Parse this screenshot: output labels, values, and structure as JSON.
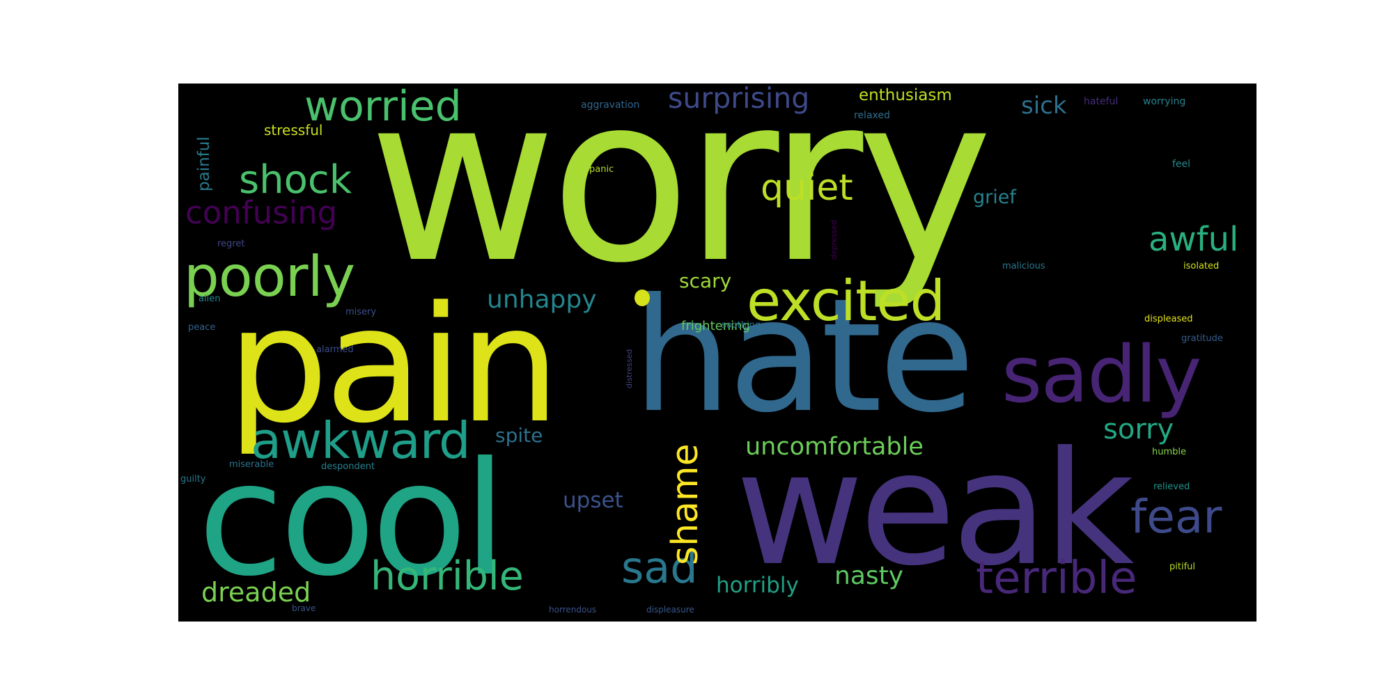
{
  "wordcloud": {
    "background": "#000000",
    "words": [
      {
        "text": "worry",
        "color": "#a8db34"
      },
      {
        "text": "pain",
        "color": "#dde318"
      },
      {
        "text": "hate",
        "color": "#31688e"
      },
      {
        "text": "weak",
        "color": "#46337e"
      },
      {
        "text": "cool",
        "color": "#20a486"
      },
      {
        "text": "sadly",
        "color": "#482475"
      },
      {
        "text": "excited",
        "color": "#bddf26"
      },
      {
        "text": "poorly",
        "color": "#7ad151"
      },
      {
        "text": "awkward",
        "color": "#1f9e89"
      },
      {
        "text": "worried",
        "color": "#4ac16d"
      },
      {
        "text": "shock",
        "color": "#4ac16d"
      },
      {
        "text": "confusing",
        "color": "#440154"
      },
      {
        "text": "surprising",
        "color": "#3e4989"
      },
      {
        "text": "quiet",
        "color": "#bddf26"
      },
      {
        "text": "fear",
        "color": "#3e4a89"
      },
      {
        "text": "terrible",
        "color": "#482878"
      },
      {
        "text": "horrible",
        "color": "#35b779"
      },
      {
        "text": "sad",
        "color": "#2a788e"
      },
      {
        "text": "shame",
        "color": "#fde725"
      },
      {
        "text": "uncomfortable",
        "color": "#6ccd5a"
      },
      {
        "text": "awful",
        "color": "#2ab07f"
      },
      {
        "text": "sorry",
        "color": "#22a884"
      },
      {
        "text": "unhappy",
        "color": "#25858e"
      },
      {
        "text": "dreaded",
        "color": "#7ad151"
      },
      {
        "text": "nasty",
        "color": "#5ec962"
      },
      {
        "text": "horribly",
        "color": "#1fa187"
      },
      {
        "text": "upset",
        "color": "#3b528b"
      },
      {
        "text": "spite",
        "color": "#2c728e"
      },
      {
        "text": "scary",
        "color": "#a0da39"
      },
      {
        "text": "sick",
        "color": "#2d708e"
      },
      {
        "text": "grief",
        "color": "#26828e"
      },
      {
        "text": "enthusiasm",
        "color": "#c2df23"
      },
      {
        "text": "stressful",
        "color": "#c8e020"
      },
      {
        "text": "painful",
        "color": "#287c8e"
      },
      {
        "text": "frightening",
        "color": "#65cb5e"
      },
      {
        "text": "aggravation",
        "color": "#31668e"
      },
      {
        "text": "relaxed",
        "color": "#2e6f8e"
      },
      {
        "text": "worrying",
        "color": "#27808e"
      },
      {
        "text": "hateful",
        "color": "#472d7b"
      },
      {
        "text": "panic",
        "color": "#b5de2b"
      },
      {
        "text": "feel",
        "color": "#23898e"
      },
      {
        "text": "regret",
        "color": "#3f4889"
      },
      {
        "text": "malicious",
        "color": "#2a768e"
      },
      {
        "text": "isolated",
        "color": "#d2e21b"
      },
      {
        "text": "alien",
        "color": "#23888e"
      },
      {
        "text": "misery",
        "color": "#3b518b"
      },
      {
        "text": "displeased",
        "color": "#e5e419"
      },
      {
        "text": "soothing",
        "color": "#2d718e"
      },
      {
        "text": "peace",
        "color": "#33638d"
      },
      {
        "text": "alarmed",
        "color": "#3d4d8a"
      },
      {
        "text": "gratitude",
        "color": "#365d8d"
      },
      {
        "text": "miserable",
        "color": "#2b748e"
      },
      {
        "text": "despondent",
        "color": "#25838e"
      },
      {
        "text": "humble",
        "color": "#86d549"
      },
      {
        "text": "guilty",
        "color": "#29798e"
      },
      {
        "text": "relieved",
        "color": "#1f958b"
      },
      {
        "text": "pitiful",
        "color": "#bade28"
      },
      {
        "text": "brave",
        "color": "#39568c"
      },
      {
        "text": "horrendous",
        "color": "#3b528b"
      },
      {
        "text": "displeasure",
        "color": "#38588c"
      },
      {
        "text": "distressed",
        "color": "#414487"
      },
      {
        "text": "depressed",
        "color": "#440154"
      }
    ]
  }
}
